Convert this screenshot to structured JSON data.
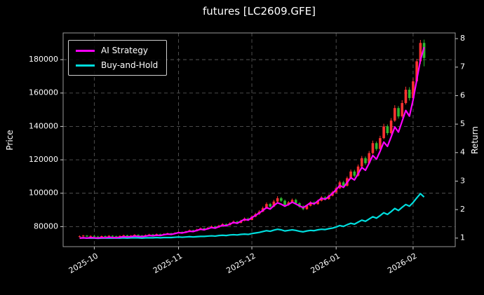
{
  "chart_data": {
    "type": "candlestick+line",
    "title": "futures [LC2609.GFE]",
    "background": "#000000",
    "left_axis": {
      "label": "Price",
      "ticks": [
        80000,
        100000,
        120000,
        140000,
        160000,
        180000
      ],
      "range": [
        68000,
        196000
      ]
    },
    "right_axis": {
      "label": "Return",
      "ticks": [
        1,
        2,
        3,
        4,
        5,
        6,
        7,
        8
      ],
      "range": [
        0.7,
        8.2
      ]
    },
    "x_axis": {
      "tick_labels": [
        "2025-10",
        "2025-11",
        "2025-12",
        "2026-01",
        "2026-02"
      ],
      "tick_indices": [
        4,
        27,
        47,
        70,
        91
      ]
    },
    "grid": {
      "show": true,
      "style": "dashed",
      "color": "#555555"
    },
    "candle_colors": {
      "up": "#ff3232",
      "down": "#2eb82e"
    },
    "series": [
      {
        "name": "AI Strategy",
        "axis": "return",
        "color": "#ff00ff",
        "column_index": 5
      },
      {
        "name": "Buy-and-Hold",
        "axis": "return",
        "color": "#00dddd",
        "column_index": 6
      }
    ],
    "columns": [
      "date",
      "open",
      "high",
      "low",
      "close",
      "ai_return",
      "buy_hold_return"
    ],
    "rows": [
      [
        "2025-09-25",
        74000,
        74700,
        73600,
        74200,
        1.0,
        1.0
      ],
      [
        "2025-09-26",
        74200,
        75000,
        73900,
        74600,
        1.01,
        1.01
      ],
      [
        "2025-09-29",
        74600,
        74900,
        73800,
        74100,
        1.0,
        1.0
      ],
      [
        "2025-09-30",
        74100,
        74800,
        73800,
        74400,
        1.02,
        1.0
      ],
      [
        "2025-10-01",
        74400,
        74900,
        73700,
        74000,
        1.01,
        1.0
      ],
      [
        "2025-10-02",
        74000,
        74500,
        73500,
        73800,
        1.0,
        0.99
      ],
      [
        "2025-10-03",
        73800,
        74700,
        73600,
        74300,
        1.02,
        1.0
      ],
      [
        "2025-10-06",
        74300,
        74700,
        73800,
        74100,
        1.01,
        1.0
      ],
      [
        "2025-10-07",
        74100,
        74900,
        73900,
        74500,
        1.03,
        1.0
      ],
      [
        "2025-10-08",
        74500,
        74800,
        73900,
        74200,
        1.02,
        1.0
      ],
      [
        "2025-10-09",
        74200,
        74600,
        73600,
        73900,
        1.01,
        1.0
      ],
      [
        "2025-10-10",
        73900,
        74800,
        73700,
        74400,
        1.03,
        1.0
      ],
      [
        "2025-10-13",
        74400,
        75200,
        74100,
        74800,
        1.05,
        1.01
      ],
      [
        "2025-10-14",
        74800,
        75100,
        74000,
        74300,
        1.04,
        1.0
      ],
      [
        "2025-10-15",
        74300,
        75000,
        74000,
        74600,
        1.05,
        1.01
      ],
      [
        "2025-10-16",
        74600,
        75500,
        74300,
        75100,
        1.07,
        1.01
      ],
      [
        "2025-10-17",
        75100,
        75400,
        74400,
        74700,
        1.06,
        1.01
      ],
      [
        "2025-10-20",
        74700,
        75100,
        74100,
        74400,
        1.05,
        1.0
      ],
      [
        "2025-10-21",
        74400,
        75300,
        74200,
        74900,
        1.07,
        1.01
      ],
      [
        "2025-10-22",
        74900,
        75700,
        74600,
        75300,
        1.09,
        1.01
      ],
      [
        "2025-10-23",
        75300,
        75600,
        74600,
        74900,
        1.08,
        1.01
      ],
      [
        "2025-10-24",
        74900,
        75900,
        74700,
        75500,
        1.1,
        1.02
      ],
      [
        "2025-10-27",
        75500,
        75800,
        74800,
        75100,
        1.09,
        1.01
      ],
      [
        "2025-10-28",
        75100,
        76000,
        74900,
        75600,
        1.12,
        1.02
      ],
      [
        "2025-10-29",
        75600,
        76400,
        75300,
        76000,
        1.14,
        1.02
      ],
      [
        "2025-10-30",
        76000,
        76300,
        75200,
        75600,
        1.13,
        1.02
      ],
      [
        "2025-10-31",
        75600,
        76600,
        75400,
        76200,
        1.16,
        1.03
      ],
      [
        "2025-11-03",
        76200,
        77200,
        75900,
        76800,
        1.19,
        1.04
      ],
      [
        "2025-11-04",
        76800,
        77100,
        76000,
        76300,
        1.18,
        1.03
      ],
      [
        "2025-11-05",
        76300,
        77500,
        76100,
        77100,
        1.21,
        1.04
      ],
      [
        "2025-11-06",
        77100,
        78300,
        76800,
        77800,
        1.24,
        1.05
      ],
      [
        "2025-11-07",
        77800,
        78100,
        76900,
        77300,
        1.23,
        1.04
      ],
      [
        "2025-11-10",
        77300,
        78700,
        77100,
        78200,
        1.27,
        1.05
      ],
      [
        "2025-11-11",
        78200,
        79500,
        77900,
        79000,
        1.31,
        1.06
      ],
      [
        "2025-11-12",
        79000,
        79400,
        78000,
        78400,
        1.29,
        1.06
      ],
      [
        "2025-11-13",
        78400,
        79800,
        78200,
        79300,
        1.33,
        1.07
      ],
      [
        "2025-11-14",
        79300,
        80700,
        79000,
        80100,
        1.37,
        1.08
      ],
      [
        "2025-11-17",
        80100,
        80500,
        79100,
        79500,
        1.35,
        1.07
      ],
      [
        "2025-11-18",
        79500,
        81100,
        79300,
        80600,
        1.4,
        1.09
      ],
      [
        "2025-11-19",
        80600,
        82100,
        80300,
        81500,
        1.45,
        1.1
      ],
      [
        "2025-11-20",
        81500,
        81900,
        80300,
        80800,
        1.43,
        1.09
      ],
      [
        "2025-11-21",
        80800,
        82600,
        80600,
        82000,
        1.49,
        1.11
      ],
      [
        "2025-11-24",
        82000,
        83700,
        81700,
        83000,
        1.55,
        1.12
      ],
      [
        "2025-11-25",
        83000,
        83500,
        81800,
        82200,
        1.52,
        1.11
      ],
      [
        "2025-11-26",
        82200,
        84100,
        82000,
        83500,
        1.59,
        1.13
      ],
      [
        "2025-11-27",
        83500,
        85500,
        83200,
        84800,
        1.66,
        1.14
      ],
      [
        "2025-11-28",
        84800,
        85400,
        83400,
        84000,
        1.63,
        1.13
      ],
      [
        "2025-12-01",
        84000,
        86800,
        83800,
        86000,
        1.72,
        1.16
      ],
      [
        "2025-12-02",
        86000,
        88300,
        85600,
        87500,
        1.8,
        1.18
      ],
      [
        "2025-12-03",
        87500,
        89900,
        87100,
        89000,
        1.88,
        1.2
      ],
      [
        "2025-12-04",
        89000,
        92000,
        88600,
        91000,
        1.97,
        1.23
      ],
      [
        "2025-12-05",
        91000,
        94500,
        90600,
        93500,
        2.07,
        1.26
      ],
      [
        "2025-12-08",
        93500,
        94200,
        91300,
        92000,
        2.02,
        1.24
      ],
      [
        "2025-12-09",
        92000,
        96000,
        91700,
        95000,
        2.14,
        1.28
      ],
      [
        "2025-12-10",
        95000,
        98200,
        94500,
        97000,
        2.24,
        1.31
      ],
      [
        "2025-12-11",
        97000,
        97800,
        94800,
        95500,
        2.19,
        1.29
      ],
      [
        "2025-12-12",
        95500,
        96200,
        92400,
        93000,
        2.12,
        1.25
      ],
      [
        "2025-12-15",
        93000,
        95300,
        92500,
        94500,
        2.18,
        1.27
      ],
      [
        "2025-12-16",
        94500,
        96800,
        94000,
        96000,
        2.26,
        1.29
      ],
      [
        "2025-12-17",
        96000,
        96700,
        93400,
        94000,
        2.2,
        1.27
      ],
      [
        "2025-12-18",
        94000,
        94600,
        91300,
        92000,
        2.13,
        1.24
      ],
      [
        "2025-12-19",
        92000,
        92800,
        89800,
        90500,
        2.07,
        1.22
      ],
      [
        "2025-12-22",
        90500,
        93200,
        90100,
        92500,
        2.15,
        1.25
      ],
      [
        "2025-12-23",
        92500,
        95200,
        92100,
        94500,
        2.24,
        1.27
      ],
      [
        "2025-12-24",
        94500,
        95100,
        92900,
        93500,
        2.2,
        1.26
      ],
      [
        "2025-12-25",
        93500,
        96200,
        93100,
        95500,
        2.3,
        1.29
      ],
      [
        "2025-12-26",
        95500,
        98300,
        95100,
        97500,
        2.4,
        1.31
      ],
      [
        "2025-12-29",
        97500,
        98200,
        95800,
        96500,
        2.36,
        1.3
      ],
      [
        "2025-12-30",
        96500,
        99300,
        96100,
        98500,
        2.46,
        1.33
      ],
      [
        "2025-12-31",
        98500,
        101400,
        98100,
        100500,
        2.57,
        1.35
      ],
      [
        "2026-01-02",
        100500,
        103900,
        100000,
        103000,
        2.7,
        1.39
      ],
      [
        "2026-01-05",
        103000,
        107500,
        102500,
        106500,
        2.85,
        1.44
      ],
      [
        "2026-01-06",
        106500,
        107400,
        103700,
        104500,
        2.78,
        1.41
      ],
      [
        "2026-01-07",
        104500,
        110000,
        104000,
        109000,
        2.95,
        1.47
      ],
      [
        "2026-01-08",
        109000,
        114200,
        108400,
        113000,
        3.12,
        1.52
      ],
      [
        "2026-01-09",
        113000,
        114000,
        109600,
        110500,
        3.04,
        1.49
      ],
      [
        "2026-01-12",
        110500,
        117200,
        110000,
        116000,
        3.26,
        1.56
      ],
      [
        "2026-01-13",
        116000,
        122300,
        115400,
        121000,
        3.48,
        1.63
      ],
      [
        "2026-01-14",
        121000,
        122000,
        117000,
        118000,
        3.38,
        1.59
      ],
      [
        "2026-01-15",
        118000,
        125300,
        117400,
        124000,
        3.63,
        1.67
      ],
      [
        "2026-01-16",
        124000,
        131500,
        123300,
        130000,
        3.9,
        1.75
      ],
      [
        "2026-01-19",
        130000,
        131000,
        125400,
        126500,
        3.77,
        1.7
      ],
      [
        "2026-01-20",
        126500,
        134400,
        125900,
        133000,
        4.05,
        1.79
      ],
      [
        "2026-01-21",
        133000,
        141600,
        132300,
        140000,
        4.37,
        1.89
      ],
      [
        "2026-01-22",
        140000,
        141200,
        134800,
        136000,
        4.22,
        1.83
      ],
      [
        "2026-01-23",
        136000,
        145000,
        135300,
        143500,
        4.55,
        1.93
      ],
      [
        "2026-01-26",
        143500,
        152700,
        142700,
        151000,
        4.9,
        2.04
      ],
      [
        "2026-01-27",
        151000,
        152200,
        144700,
        146000,
        4.72,
        1.97
      ],
      [
        "2026-01-28",
        146000,
        155700,
        145200,
        154000,
        5.1,
        2.08
      ],
      [
        "2026-01-29",
        154000,
        163800,
        153100,
        162000,
        5.48,
        2.18
      ],
      [
        "2026-01-30",
        162000,
        163500,
        155500,
        157000,
        5.28,
        2.12
      ],
      [
        "2026-02-02",
        157000,
        168900,
        156200,
        167000,
        5.85,
        2.25
      ],
      [
        "2026-02-03",
        167000,
        180500,
        166000,
        179000,
        6.55,
        2.41
      ],
      [
        "2026-02-04",
        179000,
        191800,
        177500,
        190000,
        7.25,
        2.56
      ],
      [
        "2026-02-05",
        190000,
        192000,
        176000,
        181000,
        7.7,
        2.44
      ]
    ]
  }
}
